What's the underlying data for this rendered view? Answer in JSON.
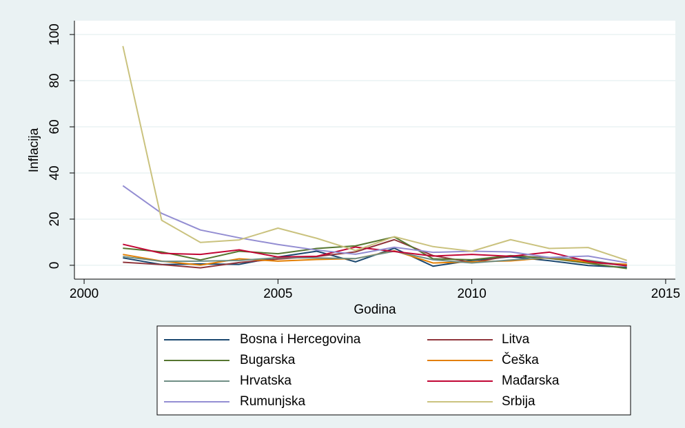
{
  "chart_data": {
    "type": "line",
    "xlabel": "Godina",
    "ylabel": "Inflacija",
    "x": [
      2001,
      2002,
      2003,
      2004,
      2005,
      2006,
      2007,
      2008,
      2009,
      2010,
      2011,
      2012,
      2013,
      2014
    ],
    "xlim": [
      1999.75,
      2015.25
    ],
    "xticks": [
      2000,
      2005,
      2010,
      2015
    ],
    "ylim": [
      -6,
      106
    ],
    "yticks": [
      0,
      20,
      40,
      60,
      80,
      100
    ],
    "grid": true,
    "series": [
      {
        "name": "Bosna i Hercegovina",
        "color": "#1a476f",
        "values": [
          3.2,
          0.3,
          0.6,
          0.4,
          3.6,
          6.1,
          1.5,
          7.4,
          -0.4,
          2.1,
          3.7,
          2.0,
          -0.1,
          -0.9
        ]
      },
      {
        "name": "Litva",
        "color": "#90353b",
        "values": [
          1.3,
          0.3,
          -1.1,
          1.2,
          2.7,
          3.8,
          5.8,
          11.1,
          4.2,
          1.2,
          4.1,
          3.2,
          1.2,
          0.2
        ]
      },
      {
        "name": "Bugarska",
        "color": "#55752f",
        "values": [
          7.4,
          5.8,
          2.3,
          6.1,
          5.0,
          7.3,
          8.4,
          12.3,
          2.8,
          2.4,
          4.2,
          3.0,
          0.9,
          -1.4
        ]
      },
      {
        "name": "Češka",
        "color": "#e37e00",
        "values": [
          4.7,
          1.8,
          0.1,
          2.8,
          1.8,
          2.5,
          2.9,
          6.3,
          1.0,
          1.5,
          1.9,
          3.3,
          1.4,
          0.4
        ]
      },
      {
        "name": "Hrvatska",
        "color": "#6e8e84",
        "values": [
          3.8,
          1.7,
          1.8,
          2.1,
          3.3,
          3.2,
          2.9,
          6.1,
          2.4,
          1.0,
          2.3,
          3.4,
          2.2,
          -0.2
        ]
      },
      {
        "name": "Mađarska",
        "color": "#c10534",
        "values": [
          9.1,
          5.2,
          4.7,
          6.7,
          3.6,
          3.9,
          7.9,
          6.0,
          4.0,
          4.7,
          3.9,
          5.7,
          1.7,
          -0.2
        ]
      },
      {
        "name": "Rumunjska",
        "color": "#938dd2",
        "values": [
          34.5,
          22.5,
          15.3,
          11.9,
          9.0,
          6.6,
          4.8,
          7.8,
          5.6,
          6.1,
          5.8,
          3.4,
          4.0,
          1.1
        ]
      },
      {
        "name": "Srbija",
        "color": "#cac27e",
        "values": [
          95.0,
          19.5,
          9.9,
          11.0,
          16.1,
          11.7,
          6.4,
          12.4,
          8.1,
          6.1,
          11.1,
          7.3,
          7.7,
          2.1
        ]
      }
    ]
  }
}
